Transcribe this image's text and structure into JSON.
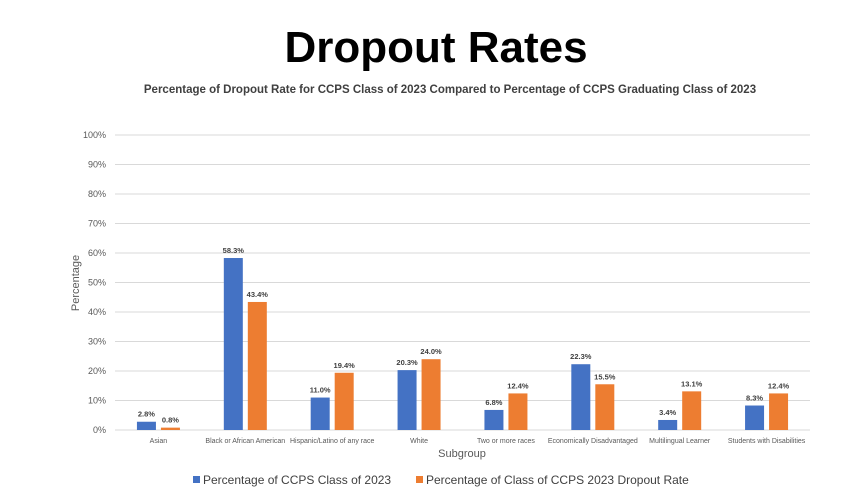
{
  "slide_title": "Dropout Rates",
  "chart_data": {
    "type": "bar",
    "title": "Percentage of Dropout Rate for CCPS Class of 2023 Compared to Percentage of CCPS Graduating Class of 2023",
    "xlabel": "Subgroup",
    "ylabel": "Percentage",
    "ylim": [
      0,
      100
    ],
    "yticks": [
      "0%",
      "10%",
      "20%",
      "30%",
      "40%",
      "50%",
      "60%",
      "70%",
      "80%",
      "90%",
      "100%"
    ],
    "grid": true,
    "legend_position": "bottom",
    "categories": [
      "Asian",
      "Black or African American",
      "Hispanic/Latino of any race",
      "White",
      "Two or more races",
      "Economically Disadvantaged",
      "Multilingual Learner",
      "Students with Disabilities"
    ],
    "series": [
      {
        "name": "Percentage of CCPS Class of 2023",
        "color": "#4472c4",
        "values": [
          2.8,
          58.3,
          11.0,
          20.3,
          6.8,
          22.3,
          3.4,
          8.3
        ]
      },
      {
        "name": "Percentage of Class of CCPS 2023 Dropout Rate",
        "color": "#ed7d31",
        "values": [
          0.8,
          43.4,
          19.4,
          24.0,
          12.4,
          15.5,
          13.1,
          12.4
        ]
      }
    ]
  }
}
